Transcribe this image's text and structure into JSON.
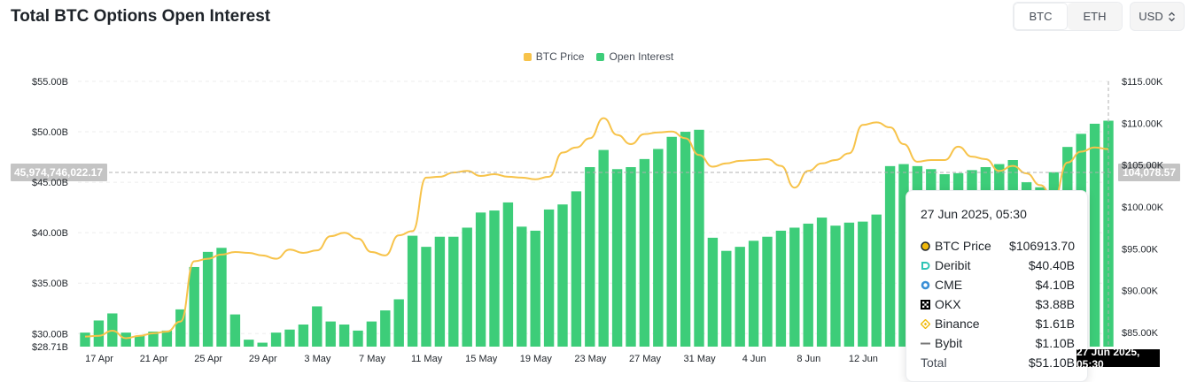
{
  "page": {
    "title": "Total BTC Options Open Interest",
    "asset_tabs": [
      {
        "label": "BTC",
        "active": true
      },
      {
        "label": "ETH",
        "active": false
      }
    ],
    "currency": {
      "label": "USD",
      "icon": "chevron-updown-icon"
    }
  },
  "crosshair": {
    "left_value": "45,974,746,022.17",
    "right_value": "104,078.57",
    "x_date_label": "27 Jun 2025, 05:30"
  },
  "tooltip": {
    "title": "27 Jun 2025, 05:30",
    "rows": [
      {
        "label": "BTC Price",
        "value": "$106913.70",
        "icon": "btc-price-dot-icon",
        "color": "#1e2329"
      },
      {
        "label": "Deribit",
        "value": "$40.40B",
        "icon": "deribit-icon",
        "color": "#2ec4b6"
      },
      {
        "label": "CME",
        "value": "$4.10B",
        "icon": "cme-icon",
        "color": "#3a8fd6"
      },
      {
        "label": "OKX",
        "value": "$3.88B",
        "icon": "okx-icon",
        "color": "#000000"
      },
      {
        "label": "Binance",
        "value": "$1.61B",
        "icon": "binance-icon",
        "color": "#f0b90b"
      },
      {
        "label": "Bybit",
        "value": "$1.10B",
        "icon": "bybit-icon",
        "color": "#777777"
      }
    ],
    "total_label": "Total",
    "total_value": "$51.10B"
  },
  "chart_data": {
    "type": "bar",
    "title": "Total BTC Options Open Interest",
    "legend_position": "top-center",
    "grid": true,
    "x_tick_labels": [
      "17 Apr",
      "21 Apr",
      "25 Apr",
      "29 Apr",
      "3 May",
      "7 May",
      "11 May",
      "15 May",
      "19 May",
      "23 May",
      "27 May",
      "31 May",
      "4 Jun",
      "8 Jun",
      "12 Jun"
    ],
    "y_left": {
      "ticks": [
        "$55.00B",
        "$50.00B",
        "$45.00B",
        "$40.00B",
        "$35.00B",
        "$30.00B",
        "$28.71B"
      ],
      "range": [
        28.71,
        55.0
      ],
      "unit": "B USD"
    },
    "y_right": {
      "ticks": [
        "$115.00K",
        "$110.00K",
        "$105.00K",
        "$100.00K",
        "$95.00K",
        "$90.00K",
        "$85.00K"
      ],
      "range": [
        83.3,
        115.0
      ],
      "unit": "K USD"
    },
    "series": [
      {
        "name": "Open Interest",
        "kind": "bar",
        "axis": "left",
        "color": "#3dcd79",
        "values": [
          30.1,
          31.3,
          32.0,
          30.1,
          29.8,
          30.2,
          30.3,
          32.4,
          36.6,
          38.1,
          38.5,
          31.9,
          29.4,
          29.1,
          30.1,
          30.4,
          30.9,
          32.7,
          31.2,
          30.9,
          30.3,
          31.2,
          32.3,
          33.4,
          39.7,
          38.6,
          39.6,
          39.6,
          40.5,
          42.0,
          42.2,
          43.0,
          40.6,
          40.2,
          42.3,
          42.8,
          44.1,
          46.5,
          48.2,
          46.3,
          46.5,
          47.3,
          48.3,
          49.5,
          50.0,
          50.2,
          39.5,
          38.2,
          38.6,
          39.2,
          39.6,
          40.2,
          40.5,
          40.9,
          41.5,
          40.7,
          41.0,
          41.1,
          41.8,
          46.6,
          46.8,
          46.6,
          46.3,
          45.8,
          45.9,
          46.2,
          46.5,
          46.8,
          47.2,
          45.0,
          44.5,
          46.0,
          48.5,
          49.8,
          50.8,
          51.1
        ]
      },
      {
        "name": "BTC Price",
        "kind": "line",
        "axis": "right",
        "color": "#f7c34a",
        "values": [
          84.5,
          84.6,
          85.2,
          84.3,
          84.6,
          84.9,
          85.1,
          86.3,
          93.5,
          93.8,
          94.3,
          94.6,
          94.5,
          94.2,
          93.8,
          94.9,
          94.5,
          94.8,
          96.5,
          96.9,
          96.2,
          94.6,
          94.2,
          96.6,
          97.1,
          103.5,
          103.6,
          104.1,
          104.3,
          103.7,
          103.9,
          103.6,
          103.5,
          103.3,
          103.6,
          106.5,
          107.1,
          108.2,
          110.6,
          108.6,
          107.5,
          108.7,
          108.9,
          109.0,
          108.2,
          106.2,
          104.8,
          105.2,
          105.5,
          105.6,
          105.7,
          104.9,
          102.3,
          104.3,
          105.2,
          105.6,
          106.4,
          109.8,
          110.1,
          109.5,
          107.5,
          105.4,
          105.6,
          105.6,
          107.2,
          106.0,
          105.7,
          104.3,
          104.9,
          104.0,
          102.6,
          101.0,
          105.3,
          106.6,
          107.1,
          106.9
        ]
      }
    ]
  }
}
